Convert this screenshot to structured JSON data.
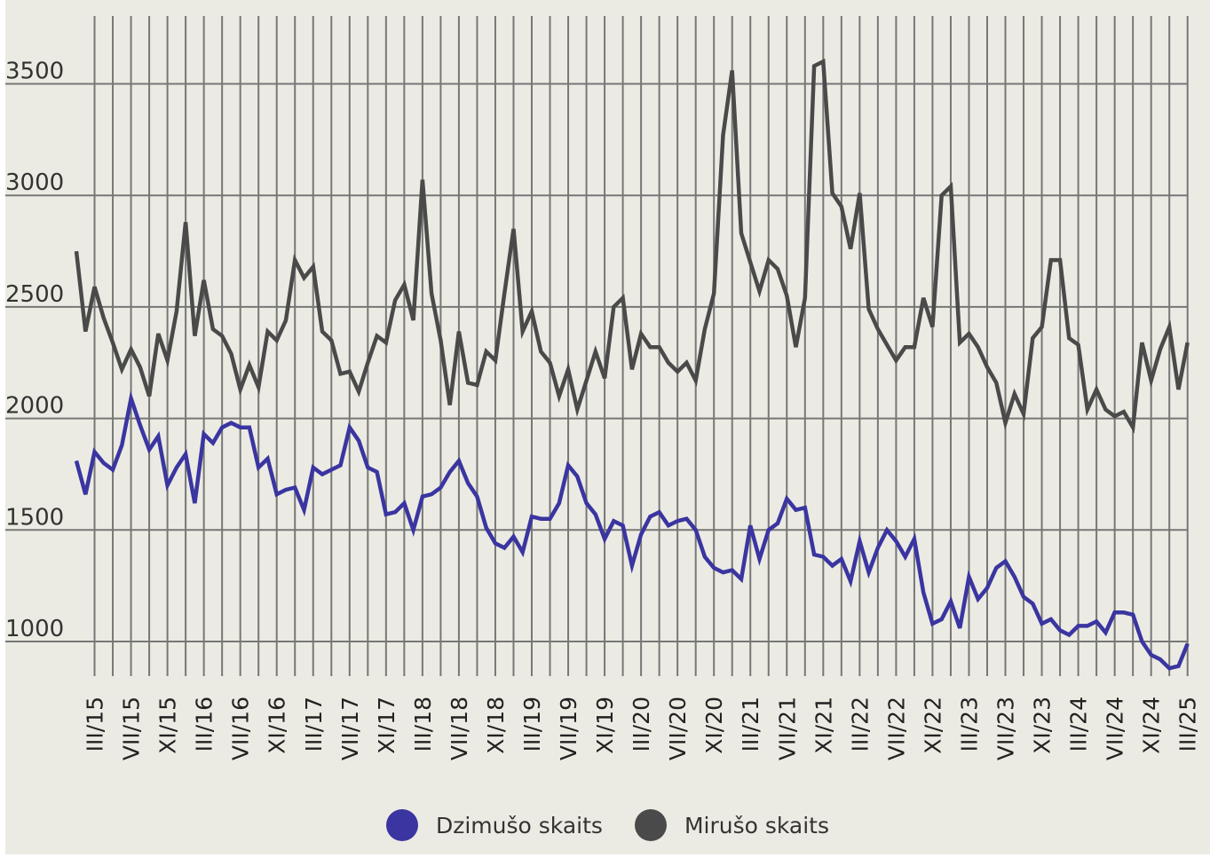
{
  "colors": {
    "background": "#ecebe3",
    "grid": "#777777",
    "births": "#3a35a0",
    "deaths": "#4a4a4a"
  },
  "legend": {
    "births_label": "Dzimušo skaits",
    "deaths_label": "Mirušo skaits"
  },
  "chart_data": {
    "type": "line",
    "title": "",
    "xlabel": "",
    "ylabel": "",
    "ylim": [
      900,
      3700
    ],
    "y_ticks": [
      1000,
      1500,
      2000,
      2500,
      3000,
      3500
    ],
    "x_tick_labels": [
      "III/15",
      "VII/15",
      "XI/15",
      "III/16",
      "VII/16",
      "XI/16",
      "III/17",
      "VII/17",
      "XI/17",
      "III/18",
      "VII/18",
      "XI/18",
      "III/19",
      "VII/19",
      "XI/19",
      "III/20",
      "VII/20",
      "XI/20",
      "III/21",
      "VII/21",
      "XI/21",
      "III/22",
      "VII/22",
      "XI/22",
      "III/23",
      "VII/23",
      "XI/23",
      "III/24",
      "VII/24",
      "XI/24",
      "III/25"
    ],
    "x_range": "I/15 – III/25 (monthly)",
    "grid": "on",
    "legend_position": "bottom",
    "series": [
      {
        "name": "Dzimušo skaits",
        "color": "#3a35a0",
        "values": [
          1810,
          1660,
          1850,
          1800,
          1770,
          1880,
          2090,
          1970,
          1860,
          1920,
          1700,
          1780,
          1840,
          1620,
          1930,
          1890,
          1960,
          1980,
          1960,
          1960,
          1780,
          1820,
          1660,
          1680,
          1690,
          1590,
          1780,
          1750,
          1770,
          1790,
          1960,
          1900,
          1780,
          1760,
          1570,
          1580,
          1620,
          1500,
          1650,
          1660,
          1690,
          1760,
          1810,
          1710,
          1650,
          1510,
          1440,
          1420,
          1470,
          1400,
          1560,
          1550,
          1550,
          1620,
          1790,
          1740,
          1620,
          1570,
          1460,
          1540,
          1520,
          1340,
          1480,
          1560,
          1580,
          1520,
          1540,
          1550,
          1500,
          1380,
          1330,
          1310,
          1320,
          1280,
          1520,
          1370,
          1500,
          1530,
          1640,
          1590,
          1600,
          1390,
          1380,
          1340,
          1370,
          1270,
          1450,
          1310,
          1420,
          1500,
          1450,
          1380,
          1460,
          1220,
          1080,
          1100,
          1180,
          1060,
          1290,
          1190,
          1240,
          1330,
          1360,
          1290,
          1200,
          1170,
          1080,
          1100,
          1050,
          1030,
          1070,
          1070,
          1090,
          1040,
          1130,
          1130,
          1120,
          1000,
          940,
          920,
          880,
          890,
          990
        ]
      },
      {
        "name": "Mirušo skaits",
        "color": "#4a4a4a",
        "values": [
          2750,
          2390,
          2590,
          2450,
          2340,
          2220,
          2310,
          2230,
          2100,
          2380,
          2260,
          2480,
          2880,
          2370,
          2620,
          2400,
          2370,
          2290,
          2130,
          2240,
          2140,
          2390,
          2350,
          2440,
          2710,
          2630,
          2680,
          2390,
          2350,
          2200,
          2210,
          2120,
          2250,
          2370,
          2340,
          2530,
          2600,
          2440,
          3070,
          2560,
          2350,
          2060,
          2390,
          2160,
          2150,
          2300,
          2260,
          2560,
          2850,
          2390,
          2480,
          2300,
          2250,
          2100,
          2220,
          2040,
          2170,
          2300,
          2180,
          2500,
          2540,
          2220,
          2380,
          2320,
          2320,
          2250,
          2210,
          2250,
          2170,
          2400,
          2560,
          3270,
          3560,
          2830,
          2700,
          2570,
          2710,
          2670,
          2550,
          2320,
          2540,
          3580,
          3600,
          3010,
          2950,
          2760,
          3010,
          2490,
          2400,
          2330,
          2260,
          2320,
          2320,
          2540,
          2410,
          3000,
          3040,
          2340,
          2380,
          2320,
          2230,
          2160,
          1980,
          2110,
          2020,
          2360,
          2410,
          2710,
          2710,
          2360,
          2330,
          2040,
          2130,
          2040,
          2010,
          2030,
          1960,
          2340,
          2170,
          2310,
          2410,
          2130,
          2340
        ]
      }
    ]
  }
}
